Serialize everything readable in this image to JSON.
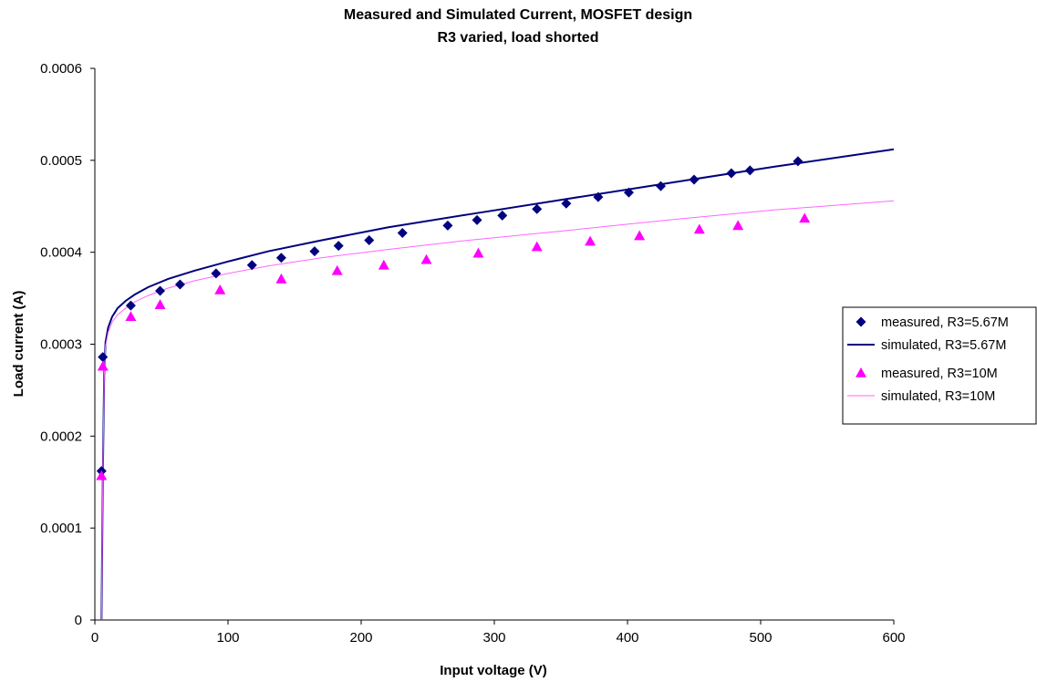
{
  "chart_data": {
    "type": "scatter",
    "title": "Measured and Simulated Current, MOSFET design",
    "subtitle": "R3 varied, load shorted",
    "xlabel": "Input voltage (V)",
    "ylabel": "Load current (A)",
    "xlim": [
      0,
      600
    ],
    "ylim": [
      0,
      0.0006
    ],
    "x_ticks": [
      0,
      100,
      200,
      300,
      400,
      500,
      600
    ],
    "x_tick_labels": [
      "0",
      "100",
      "200",
      "300",
      "400",
      "500",
      "600"
    ],
    "y_ticks": [
      0,
      0.0001,
      0.0002,
      0.0003,
      0.0004,
      0.0005,
      0.0006
    ],
    "y_tick_labels": [
      "0",
      "0.0001",
      "0.0002",
      "0.0003",
      "0.0004",
      "0.0005",
      "0.0006"
    ],
    "grid": false,
    "legend_position": "right",
    "series": [
      {
        "name": "measured, R3=5.67M",
        "style": "markers",
        "marker": "diamond",
        "color": "#000080",
        "x": [
          5,
          6,
          27,
          49,
          64,
          91,
          118,
          140,
          165,
          183,
          206,
          231,
          265,
          287,
          306,
          332,
          354,
          378,
          401,
          425,
          450,
          478,
          492,
          528
        ],
        "y": [
          0.000162,
          0.000286,
          0.000342,
          0.000358,
          0.000365,
          0.000377,
          0.000386,
          0.000394,
          0.000401,
          0.000407,
          0.000413,
          0.000421,
          0.000429,
          0.000435,
          0.00044,
          0.000447,
          0.000453,
          0.00046,
          0.000465,
          0.000472,
          0.000479,
          0.000486,
          0.000489,
          0.000499
        ]
      },
      {
        "name": "simulated, R3=5.67M",
        "style": "line",
        "color": "#000080",
        "x": [
          5,
          6,
          7,
          8,
          10,
          13,
          17,
          23,
          30,
          40,
          55,
          75,
          100,
          130,
          170,
          220,
          280,
          350,
          430,
          510,
          600
        ],
        "y": [
          0,
          0.00016,
          0.000265,
          0.000302,
          0.000318,
          0.00033,
          0.000339,
          0.000347,
          0.000354,
          0.000362,
          0.000371,
          0.00038,
          0.00039,
          0.000401,
          0.000413,
          0.000427,
          0.000441,
          0.000457,
          0.000475,
          0.000493,
          0.000512
        ]
      },
      {
        "name": "measured, R3=10M",
        "style": "markers",
        "marker": "triangle",
        "color": "#FF00FF",
        "x": [
          5,
          6,
          27,
          49,
          94,
          140,
          182,
          217,
          249,
          288,
          332,
          372,
          409,
          454,
          483,
          533
        ],
        "y": [
          0.000157,
          0.000276,
          0.00033,
          0.000343,
          0.000359,
          0.000371,
          0.00038,
          0.000386,
          0.000392,
          0.000399,
          0.000406,
          0.000412,
          0.000418,
          0.000425,
          0.000429,
          0.000437
        ]
      },
      {
        "name": "simulated, R3=10M",
        "style": "line",
        "color": "#FF66FF",
        "x": [
          5,
          6,
          7,
          8,
          10,
          13,
          17,
          23,
          30,
          40,
          55,
          75,
          100,
          130,
          170,
          220,
          280,
          350,
          430,
          510,
          600
        ],
        "y": [
          0,
          0.00016,
          0.000262,
          0.000298,
          0.000313,
          0.000324,
          0.000332,
          0.000339,
          0.000346,
          0.000353,
          0.000361,
          0.000369,
          0.000377,
          0.000385,
          0.000394,
          0.000403,
          0.000413,
          0.000423,
          0.000435,
          0.000446,
          0.000456
        ]
      }
    ]
  }
}
